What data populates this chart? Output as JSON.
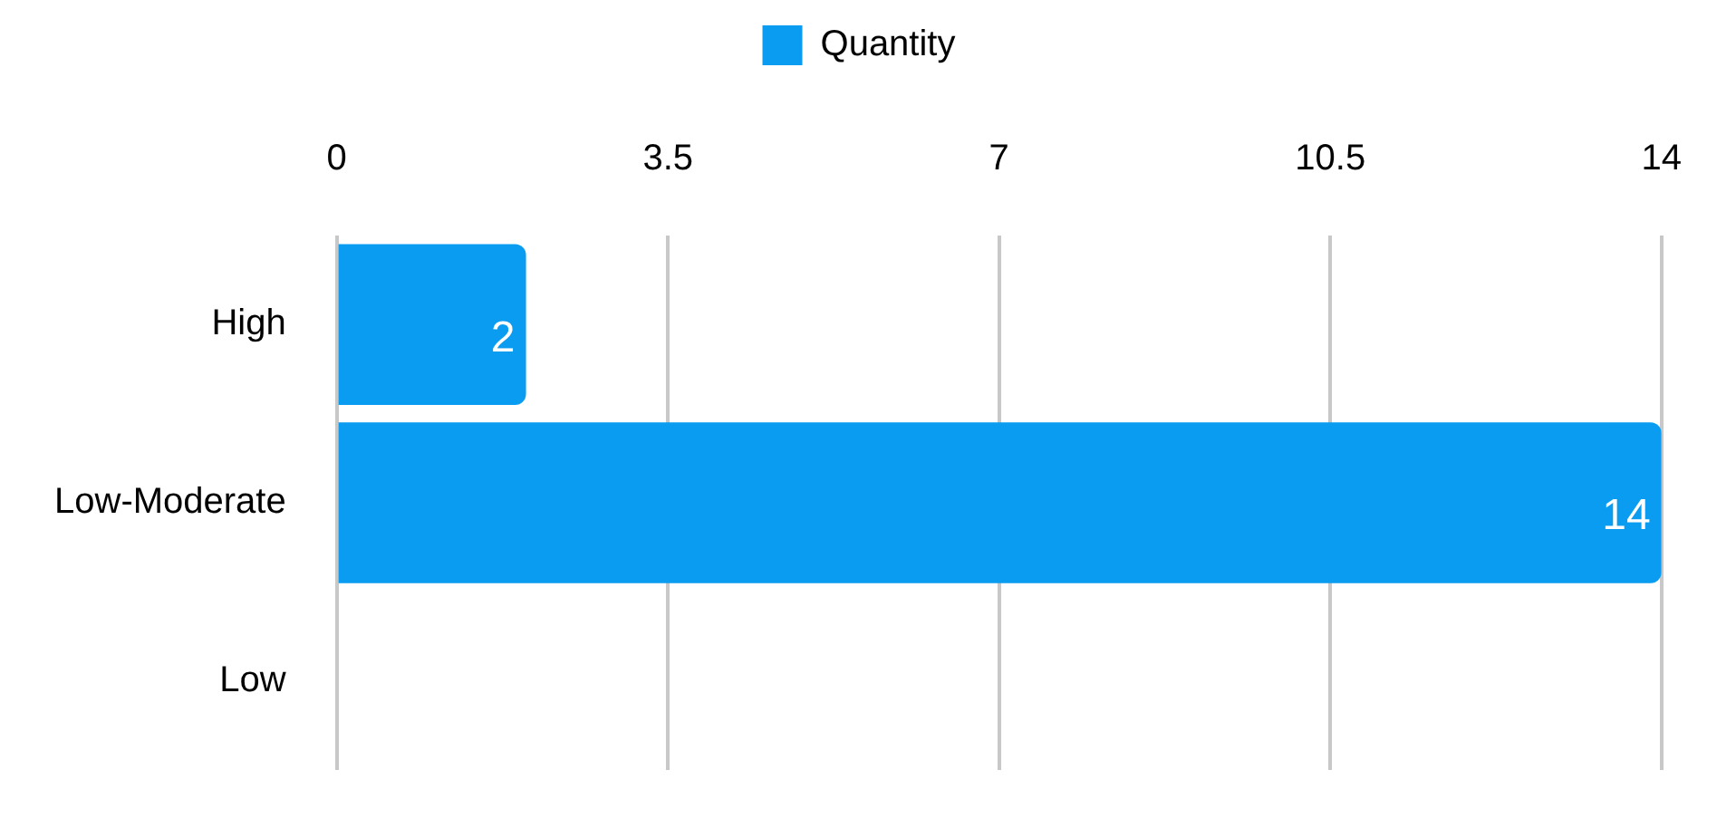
{
  "chart_data": {
    "type": "bar",
    "orientation": "horizontal",
    "categories": [
      "High",
      "Low-Moderate",
      "Low"
    ],
    "series": [
      {
        "name": "Quantity",
        "color": "#0a9cf0",
        "values": [
          2,
          14,
          null
        ]
      }
    ],
    "xlim": [
      0,
      14
    ],
    "xticks": [
      0,
      3.5,
      7,
      10.5,
      14
    ],
    "grid": "x",
    "legend": "top",
    "data_labels": true
  }
}
